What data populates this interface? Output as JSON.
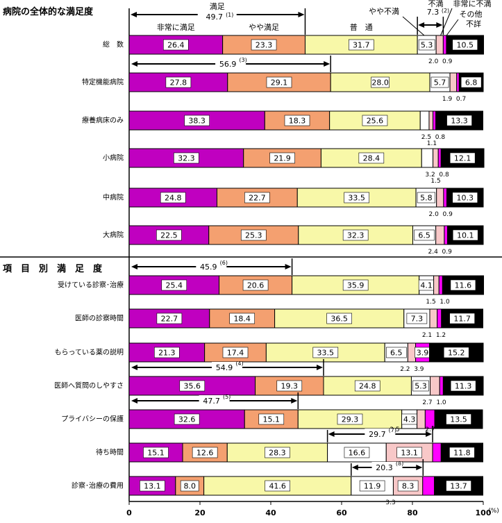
{
  "chart_data": {
    "type": "bar",
    "orientation": "horizontal",
    "stacked": true,
    "xlim": [
      0,
      100
    ],
    "x_ticks": [
      "0",
      "20",
      "40",
      "60",
      "80",
      "100"
    ],
    "x_unit": "(%)",
    "grid": false,
    "colors": {
      "非常に満足": "#c000c0",
      "やや満足": "#f4a070",
      "普通": "#f8f8a8",
      "やや不満": "#ffffff",
      "非常に不満": "#f8c8c8",
      "その他": "#ff00ff",
      "不詳": "#000000"
    },
    "series_names": [
      "非常に満足",
      "やや満足",
      "普通",
      "やや不満",
      "非常に不満",
      "その他",
      "不詳"
    ],
    "legend": {
      "manzoku": "満足",
      "manzoku_value": "49.7",
      "manzoku_mark": "(1)",
      "fuman": "不満",
      "fuman_value": "7.3",
      "fuman_mark": "(2)",
      "hijou_manzoku": "非常に満足",
      "yaya_manzoku": "やや満足",
      "futsuu": "普　通",
      "yaya_fuman": "やや不満",
      "hijou_fuman": "非常に不満",
      "sonota": "その他",
      "fushou": "不詳"
    },
    "sections": [
      {
        "title": "病院の全体的な満足度"
      },
      {
        "title": "項　目　別　満　足　度"
      }
    ],
    "rows": [
      {
        "label": "総　数",
        "values": [
          26.4,
          23.3,
          31.7,
          5.3,
          2.0,
          0.9,
          10.5
        ],
        "below_labels": [
          "2.0",
          "0.9"
        ]
      },
      {
        "label": "特定機能病院",
        "values": [
          27.8,
          29.1,
          28.0,
          5.7,
          1.9,
          0.7,
          6.8
        ],
        "below_labels": [
          "1.9",
          "0.7"
        ],
        "bracket": {
          "value": "56.9",
          "mark": "(3)"
        }
      },
      {
        "label": "療養病床のみ",
        "values": [
          38.3,
          18.3,
          25.6,
          2.5,
          1.1,
          0.8,
          13.3
        ],
        "below_labels": [
          "2.5",
          "0.8",
          "1.1"
        ]
      },
      {
        "label": "小病院",
        "values": [
          32.3,
          21.9,
          28.4,
          3.2,
          1.5,
          0.8,
          12.1
        ],
        "below_labels": [
          "3.2",
          "0.8",
          "1.5"
        ]
      },
      {
        "label": "中病院",
        "values": [
          24.8,
          22.7,
          33.5,
          5.8,
          2.0,
          0.9,
          10.3
        ],
        "below_labels": [
          "2.0",
          "0.9"
        ]
      },
      {
        "label": "大病院",
        "values": [
          22.5,
          25.3,
          32.3,
          6.5,
          2.4,
          0.9,
          10.1
        ],
        "below_labels": [
          "2.4",
          "0.9"
        ]
      },
      {
        "label": "受けている診察･治療",
        "values": [
          25.4,
          20.6,
          35.9,
          4.1,
          1.5,
          1.0,
          11.6
        ],
        "below_labels": [
          "1.5",
          "1.0"
        ],
        "bracket": {
          "value": "45.9",
          "mark": "(6)"
        }
      },
      {
        "label": "医師の診察時間",
        "values": [
          22.7,
          18.4,
          36.5,
          7.3,
          2.1,
          1.2,
          11.7
        ],
        "below_labels": [
          "2.1",
          "1.2"
        ]
      },
      {
        "label": "もらっている薬の説明",
        "values": [
          21.3,
          17.4,
          33.5,
          6.5,
          2.2,
          3.9,
          15.2
        ],
        "below_labels": [
          "2.2",
          "3.9"
        ]
      },
      {
        "label": "医師へ質問のしやすさ",
        "values": [
          35.6,
          19.3,
          24.8,
          5.3,
          2.7,
          1.0,
          11.3
        ],
        "below_labels": [
          "2.7",
          "1.0"
        ],
        "bracket": {
          "value": "54.9",
          "mark": "(4)"
        }
      },
      {
        "label": "プライバシーの保護",
        "values": [
          32.6,
          15.1,
          29.3,
          4.3,
          2.3,
          2.7,
          13.5
        ],
        "below_labels": [],
        "bracket": {
          "value": "47.7",
          "mark": "(5)"
        }
      },
      {
        "label": "待ち時間",
        "values": [
          15.1,
          12.6,
          28.3,
          16.6,
          13.1,
          2.4,
          11.8
        ],
        "below_labels": [
          "2.4"
        ],
        "bracket": {
          "value": "29.7",
          "mark": "(7)"
        },
        "above_labels": [
          "2.5",
          "2.7"
        ]
      },
      {
        "label": "診察･治療の費用",
        "values": [
          13.1,
          8.0,
          41.6,
          11.9,
          8.3,
          3.3,
          13.7
        ],
        "below_labels": [
          "3.3"
        ],
        "bracket": {
          "value": "20.3",
          "mark": "(8)"
        }
      }
    ]
  }
}
